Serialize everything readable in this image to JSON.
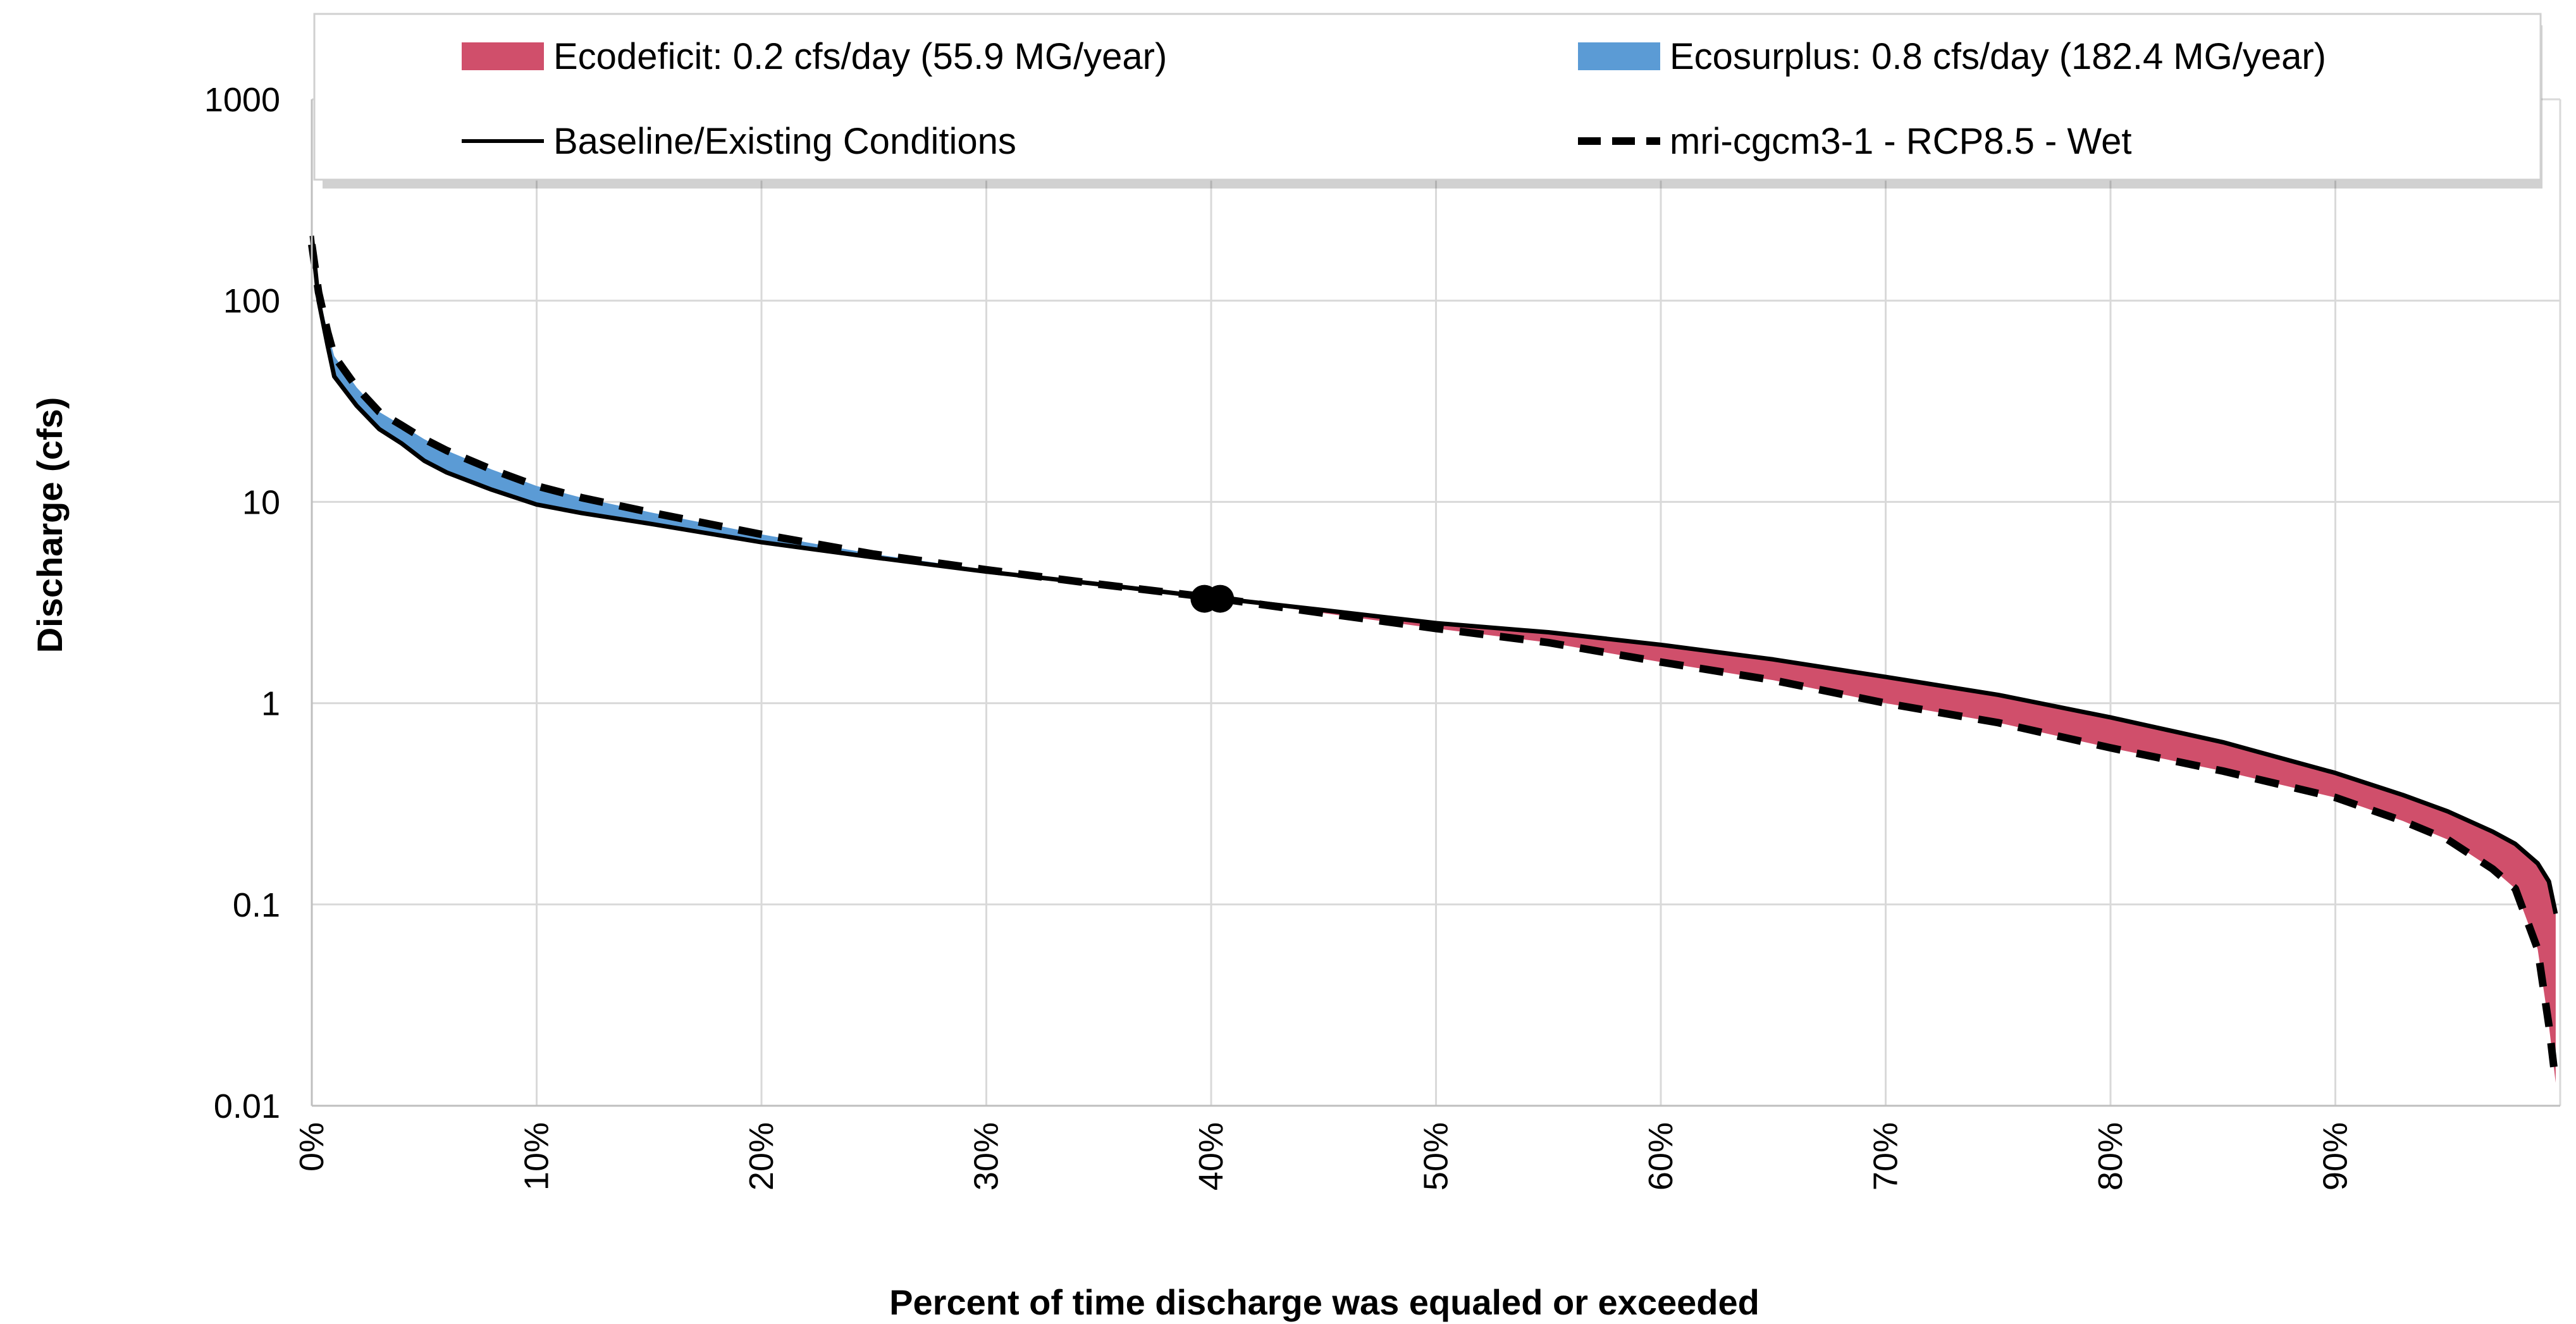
{
  "chart_data": {
    "type": "area",
    "title": "",
    "xlabel": "Percent of time discharge was equaled or exceeded",
    "ylabel": "Discharge (cfs)",
    "xlim": [
      0,
      100
    ],
    "ylim": [
      0.01,
      1000
    ],
    "y_scale": "log",
    "x_tick_values": [
      0,
      10,
      20,
      30,
      40,
      50,
      60,
      70,
      80,
      90
    ],
    "x_tick_labels": [
      "0%",
      "10%",
      "20%",
      "30%",
      "40%",
      "50%",
      "60%",
      "70%",
      "80%",
      "90%"
    ],
    "y_tick_values": [
      0.01,
      0.1,
      1,
      10,
      100,
      1000
    ],
    "y_tick_labels": [
      "0.01",
      "0.1",
      "1",
      "10",
      "100",
      "1000"
    ],
    "grid": true,
    "legend_position": "top",
    "colors": {
      "ecodeficit": "#d04f6b",
      "ecosurplus": "#5b9bd5",
      "baseline": "#000000",
      "scenario": "#000000"
    },
    "legend": [
      {
        "key": "ecodeficit",
        "label": "Ecodeficit: 0.2 cfs/day (55.9 MG/year)",
        "style": "area"
      },
      {
        "key": "ecosurplus",
        "label": "Ecosurplus: 0.8 cfs/day (182.4 MG/year)",
        "style": "area"
      },
      {
        "key": "baseline",
        "label": "Baseline/Existing Conditions",
        "style": "solid"
      },
      {
        "key": "scenario",
        "label": "mri-cgcm3-1 - RCP8.5 - Wet",
        "style": "dashed"
      }
    ],
    "crossover_points": [
      {
        "x": 39.7,
        "y": 3.3
      },
      {
        "x": 40.4,
        "y": 3.3
      }
    ],
    "series": [
      {
        "name": "Baseline/Existing Conditions",
        "key": "baseline",
        "x": [
          0,
          0.3,
          0.7,
          1,
          2,
          3,
          4,
          5,
          6,
          8,
          10,
          12,
          15,
          20,
          25,
          30,
          35,
          40,
          45,
          50,
          55,
          60,
          65,
          70,
          75,
          80,
          85,
          90,
          93,
          95,
          97,
          98,
          99,
          99.5,
          99.8
        ],
        "y": [
          210,
          100,
          60,
          42,
          30,
          23,
          19.5,
          16,
          14,
          11.5,
          9.7,
          8.8,
          7.8,
          6.3,
          5.3,
          4.5,
          3.9,
          3.35,
          2.9,
          2.5,
          2.25,
          1.95,
          1.65,
          1.35,
          1.1,
          0.85,
          0.64,
          0.45,
          0.35,
          0.29,
          0.23,
          0.2,
          0.16,
          0.13,
          0.09
        ]
      },
      {
        "name": "mri-cgcm3-1 - RCP8.5 - Wet",
        "key": "scenario",
        "x": [
          0,
          0.3,
          0.7,
          1,
          2,
          3,
          4,
          5,
          6,
          8,
          10,
          12,
          15,
          20,
          25,
          30,
          35,
          40,
          45,
          50,
          55,
          60,
          65,
          70,
          75,
          80,
          85,
          90,
          93,
          95,
          97,
          98,
          99,
          99.5,
          99.8
        ],
        "y": [
          190,
          110,
          70,
          53,
          37,
          28,
          24,
          20.5,
          18,
          14.5,
          12,
          10.5,
          8.9,
          6.9,
          5.5,
          4.6,
          3.9,
          3.35,
          2.8,
          2.35,
          2.0,
          1.6,
          1.3,
          1.0,
          0.8,
          0.6,
          0.46,
          0.34,
          0.26,
          0.21,
          0.15,
          0.12,
          0.06,
          0.025,
          0.013
        ]
      }
    ]
  }
}
